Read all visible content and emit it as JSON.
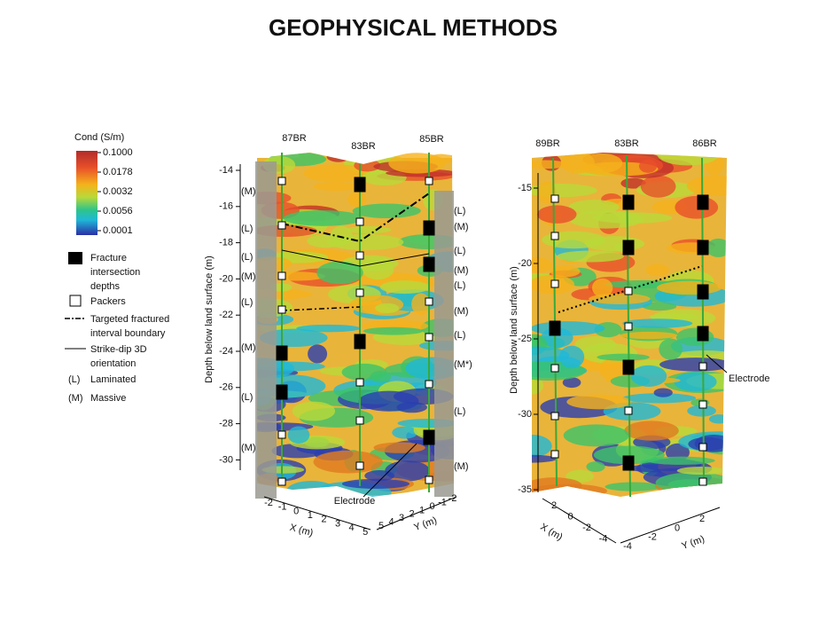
{
  "header": {
    "title": "GEOPHYSICAL METHODS"
  },
  "legend": {
    "title": "Cond (S/m)",
    "scale": [
      "0.1000",
      "0.0178",
      "0.0032",
      "0.0056",
      "0.0001"
    ],
    "items": [
      {
        "lines": [
          "Fracture",
          "intersection",
          "depths"
        ]
      },
      {
        "lines": [
          "Packers"
        ]
      },
      {
        "lines": [
          "Targeted fractured",
          "interval boundary"
        ]
      },
      {
        "lines": [
          "Strike-dip 3D",
          "orientation"
        ]
      },
      {
        "lines": [
          "(L)",
          "Laminated"
        ]
      },
      {
        "lines": [
          "(M)",
          "Massive"
        ]
      }
    ]
  },
  "panels": [
    {
      "boreholes": [
        "87BR",
        "83BR",
        "85BR"
      ],
      "y_label": "Depth below land surface (m)",
      "y_ticks": [
        "-14",
        "-16",
        "-18",
        "-20",
        "-22",
        "-24",
        "-26",
        "-28",
        "-30"
      ],
      "left_labels": [
        "(M)",
        "(L)",
        "(L)",
        "(M)",
        "(L)",
        "(M)",
        "(L)",
        "(M)"
      ],
      "right_labels": [
        "(L)",
        "(M)",
        "(L)",
        "(M)",
        "(L)",
        "(M)",
        "(L)",
        "(M*)",
        "(L)",
        "(M)"
      ],
      "annotation": "Electrode",
      "x_label": "X (m)",
      "x_ticks": [
        "-2",
        "-1",
        "0",
        "1",
        "2",
        "3",
        "4",
        "5"
      ],
      "y2_label": "Y (m)",
      "y2_ticks": [
        "5",
        "4",
        "3",
        "2",
        "1",
        "0",
        "-1",
        "-2"
      ]
    },
    {
      "boreholes": [
        "89BR",
        "83BR",
        "86BR"
      ],
      "y_label": "Depth below land surface (m)",
      "y_ticks": [
        "-15",
        "-20",
        "-25",
        "-30",
        "-35"
      ],
      "annotation": "Electrode",
      "x_label": "X (m)",
      "x_ticks": [
        "2",
        "0",
        "-2",
        "-4"
      ],
      "y2_label": "Y (m)",
      "y2_ticks": [
        "-4",
        "-2",
        "0",
        "2"
      ]
    }
  ]
}
